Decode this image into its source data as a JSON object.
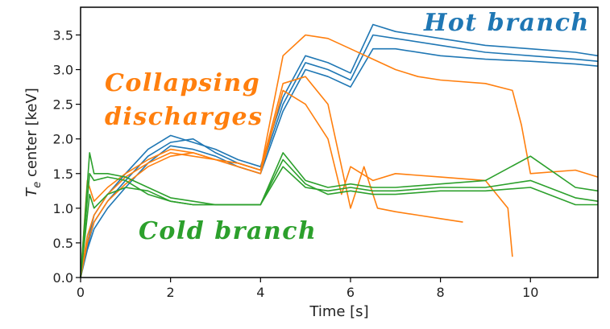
{
  "chart_data": {
    "type": "line",
    "xlabel": "Time [s]",
    "ylabel_symbol": "T",
    "ylabel_subscript": "e",
    "ylabel_rest": " center [keV]",
    "xlim": [
      0,
      11.5
    ],
    "ylim": [
      0,
      3.9
    ],
    "xticks": [
      0,
      2,
      4,
      6,
      8,
      10
    ],
    "yticks": [
      0.0,
      0.5,
      1.0,
      1.5,
      2.0,
      2.5,
      3.0,
      3.5
    ],
    "ytick_labels": [
      "0.0",
      "0.5",
      "1.0",
      "1.5",
      "2.0",
      "2.5",
      "3.0",
      "3.5"
    ],
    "grid": false,
    "colors": {
      "hot": "#1f77b4",
      "collapsing": "#ff7f0e",
      "cold": "#2ca02c"
    },
    "annotations": {
      "hot": "Hot branch",
      "collapsing_line1": "Collapsing",
      "collapsing_line2": "discharges",
      "cold": "Cold branch"
    },
    "series": [
      {
        "group": "hot",
        "x": [
          0,
          0.15,
          0.3,
          0.6,
          1.0,
          1.5,
          2.0,
          2.5,
          3.0,
          3.5,
          4.0,
          4.5,
          5.0,
          5.5,
          6.0,
          6.5,
          7.0,
          8.0,
          9.0,
          10.0,
          11.0,
          11.5
        ],
        "y": [
          0,
          0.5,
          0.9,
          1.2,
          1.5,
          1.85,
          2.05,
          1.95,
          1.85,
          1.7,
          1.6,
          2.6,
          3.2,
          3.1,
          2.95,
          3.65,
          3.55,
          3.45,
          3.35,
          3.3,
          3.25,
          3.2
        ]
      },
      {
        "group": "hot",
        "x": [
          0,
          0.15,
          0.3,
          0.6,
          1.0,
          1.5,
          2.0,
          2.5,
          3.0,
          3.5,
          4.0,
          4.5,
          5.0,
          5.5,
          6.0,
          6.5,
          7.0,
          8.0,
          9.0,
          10.0,
          11.0,
          11.5
        ],
        "y": [
          0,
          0.45,
          0.8,
          1.1,
          1.4,
          1.75,
          1.95,
          2.0,
          1.8,
          1.65,
          1.55,
          2.5,
          3.1,
          3.0,
          2.85,
          3.5,
          3.45,
          3.35,
          3.25,
          3.2,
          3.15,
          3.12
        ]
      },
      {
        "group": "hot",
        "x": [
          0,
          0.15,
          0.3,
          0.6,
          1.0,
          1.5,
          2.0,
          2.5,
          3.0,
          3.5,
          4.0,
          4.5,
          5.0,
          5.5,
          6.0,
          6.5,
          7.0,
          8.0,
          9.0,
          10.0,
          11.0,
          11.5
        ],
        "y": [
          0,
          0.4,
          0.7,
          1.0,
          1.3,
          1.65,
          1.9,
          1.85,
          1.75,
          1.6,
          1.5,
          2.4,
          3.0,
          2.9,
          2.75,
          3.3,
          3.3,
          3.2,
          3.15,
          3.12,
          3.08,
          3.05
        ]
      },
      {
        "group": "collapsing",
        "x": [
          0,
          0.15,
          0.3,
          0.6,
          1.0,
          1.5,
          2.0,
          2.5,
          3.0,
          3.5,
          4.0,
          4.5,
          5.0,
          5.5,
          6.0,
          6.5,
          7.0,
          7.5,
          8.0,
          9.0,
          9.6,
          9.8,
          10.0,
          11.0,
          11.5
        ],
        "y": [
          0,
          1.4,
          1.1,
          1.3,
          1.5,
          1.7,
          1.85,
          1.8,
          1.7,
          1.65,
          1.55,
          3.2,
          3.5,
          3.45,
          3.3,
          3.15,
          3.0,
          2.9,
          2.85,
          2.8,
          2.7,
          2.2,
          1.5,
          1.55,
          1.45
        ]
      },
      {
        "group": "collapsing",
        "x": [
          0,
          0.15,
          0.3,
          0.6,
          1.0,
          1.5,
          2.0,
          2.5,
          3.0,
          3.5,
          4.0,
          4.5,
          5.0,
          5.5,
          6.0,
          6.3,
          6.6,
          7.0,
          7.5,
          8.0,
          8.5
        ],
        "y": [
          0,
          0.6,
          0.9,
          1.2,
          1.45,
          1.65,
          1.8,
          1.75,
          1.7,
          1.65,
          1.55,
          2.8,
          2.9,
          2.5,
          1.0,
          1.6,
          1.0,
          0.95,
          0.9,
          0.85,
          0.8
        ]
      },
      {
        "group": "collapsing",
        "x": [
          0,
          0.15,
          0.3,
          0.6,
          1.0,
          1.5,
          2.0,
          2.5,
          3.0,
          3.5,
          4.0,
          4.5,
          5.0,
          5.5,
          5.8,
          6.0,
          6.5,
          7.0,
          8.0,
          9.0,
          9.5,
          9.6
        ],
        "y": [
          0,
          0.5,
          0.8,
          1.1,
          1.35,
          1.6,
          1.75,
          1.8,
          1.7,
          1.6,
          1.5,
          2.7,
          2.5,
          2.0,
          1.2,
          1.6,
          1.4,
          1.5,
          1.45,
          1.4,
          1.0,
          0.3
        ]
      },
      {
        "group": "cold",
        "x": [
          0,
          0.2,
          0.3,
          0.6,
          1.0,
          1.5,
          2.0,
          2.5,
          3.0,
          3.5,
          4.0,
          4.5,
          5.0,
          5.5,
          6.0,
          6.5,
          7.0,
          8.0,
          9.0,
          10.0,
          11.0,
          11.5
        ],
        "y": [
          0,
          1.8,
          1.5,
          1.5,
          1.45,
          1.3,
          1.15,
          1.1,
          1.05,
          1.05,
          1.05,
          1.8,
          1.4,
          1.3,
          1.35,
          1.3,
          1.3,
          1.35,
          1.4,
          1.75,
          1.3,
          1.25
        ]
      },
      {
        "group": "cold",
        "x": [
          0,
          0.2,
          0.3,
          0.6,
          1.0,
          1.5,
          2.0,
          2.5,
          3.0,
          3.5,
          4.0,
          4.5,
          5.0,
          5.5,
          6.0,
          6.5,
          7.0,
          8.0,
          9.0,
          10.0,
          11.0,
          11.5
        ],
        "y": [
          0,
          1.2,
          1.0,
          1.2,
          1.3,
          1.25,
          1.1,
          1.05,
          1.05,
          1.05,
          1.05,
          1.6,
          1.3,
          1.25,
          1.3,
          1.25,
          1.25,
          1.3,
          1.3,
          1.4,
          1.15,
          1.1
        ]
      },
      {
        "group": "cold",
        "x": [
          0,
          0.2,
          0.3,
          0.6,
          1.0,
          1.5,
          2.0,
          2.5,
          3.0,
          3.5,
          4.0,
          4.5,
          5.0,
          5.5,
          6.0,
          6.5,
          7.0,
          8.0,
          9.0,
          10.0,
          11.0,
          11.5
        ],
        "y": [
          0,
          1.5,
          1.4,
          1.45,
          1.4,
          1.2,
          1.1,
          1.05,
          1.05,
          1.05,
          1.05,
          1.7,
          1.35,
          1.2,
          1.25,
          1.2,
          1.2,
          1.25,
          1.25,
          1.3,
          1.05,
          1.05
        ]
      }
    ]
  }
}
